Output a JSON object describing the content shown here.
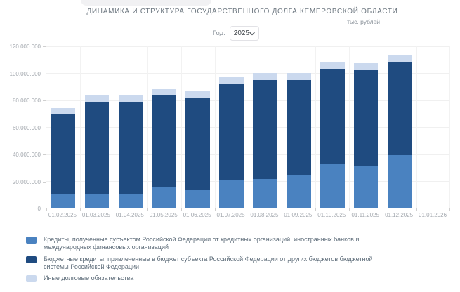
{
  "controls": {
    "year_label": "Год:",
    "year_value": "2025"
  },
  "chart_data": {
    "type": "bar",
    "stacked": true,
    "title": "ДИНАМИКА И СТРУКТУРА ГОСУДАРСТВЕННОГО ДОЛГА КЕМЕРОВСКОЙ ОБЛАСТИ",
    "units_label": "тыс. рублей",
    "xlabel": "",
    "ylabel": "",
    "ylim": [
      0,
      120000000
    ],
    "grid": true,
    "legend_position": "bottom-left",
    "y_tick_labels": [
      "0",
      "20.000.000",
      "40.000.000",
      "60.000.000",
      "80.000.000",
      "100.000.000",
      "120.000.000"
    ],
    "categories": [
      "01.02.2025",
      "01.03.2025",
      "01.04.2025",
      "01.05.2025",
      "01.06.2025",
      "01.07.2025",
      "01.08.2025",
      "01.09.2025",
      "01.10.2025",
      "01.11.2025",
      "01.12.2025",
      "01.01.2026"
    ],
    "series": [
      {
        "name": "Кредиты, полученные субъектом Российской Федерации от кредитных организаций, иностранных банков и международных финансовых организаций",
        "label_lines": [
          "Кредиты, полученные субъектом Российской Федерации от кредитных организаций, иностранных банков и",
          "международных финансовых организаций"
        ],
        "color": "#4A82C0",
        "values": [
          10000000,
          10000000,
          10000000,
          15000000,
          13000000,
          21000000,
          21500000,
          24000000,
          32000000,
          31300000,
          39000000,
          0
        ]
      },
      {
        "name": "Бюджетные кредиты, привлеченные в бюджет субъекта Российской Федерации от других бюджетов бюджетной системы Российской Федерации",
        "label_lines": [
          "Бюджетные кредиты, привлеченные в бюджет субъекта Российской Федерации от других бюджетов бюджетной",
          "системы Российской Федерации"
        ],
        "color": "#1F4B80",
        "values": [
          59000000,
          68000000,
          68000000,
          68000000,
          68000000,
          71000000,
          73000000,
          70500000,
          70300000,
          70500000,
          68300000,
          0
        ]
      },
      {
        "name": "Иные долговые обязательства",
        "label_lines": [
          "Иные долговые обязательства"
        ],
        "color": "#CBD9EE",
        "values": [
          5000000,
          5000000,
          5000000,
          5000000,
          5000000,
          5000000,
          5000000,
          5000000,
          5200000,
          5200000,
          5200000,
          0
        ]
      }
    ]
  }
}
